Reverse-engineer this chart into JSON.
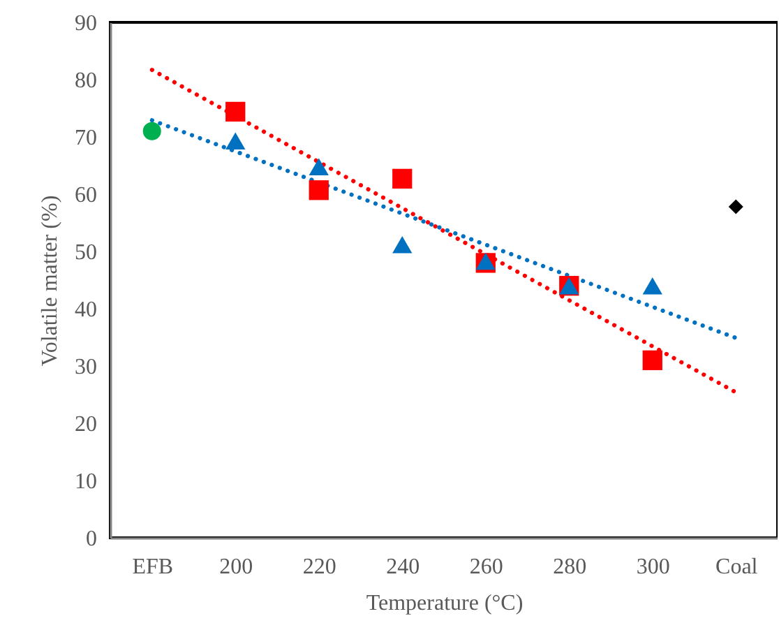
{
  "chart_data": {
    "type": "scatter",
    "xlabel": "Temperature (°C)",
    "ylabel": "Volatile matter (%)",
    "categories": [
      "EFB",
      "200",
      "220",
      "240",
      "260",
      "280",
      "300",
      "Coal"
    ],
    "ylim": [
      0,
      90
    ],
    "yticks": [
      0,
      10,
      20,
      30,
      40,
      50,
      60,
      70,
      80,
      90
    ],
    "series": [
      {
        "type": "line",
        "color": "#ff0000",
        "line_style": "dotted",
        "marker": "none",
        "x": [
          "EFB",
          "Coal"
        ],
        "values": [
          81.7,
          25.4
        ]
      },
      {
        "type": "line",
        "color": "#0070c0",
        "line_style": "dotted",
        "marker": "none",
        "x": [
          "EFB",
          "Coal"
        ],
        "values": [
          72.9,
          34.9
        ]
      },
      {
        "type": "scatter",
        "color": "#00b050",
        "marker": "circle",
        "x": [
          "EFB"
        ],
        "values": [
          71
        ]
      },
      {
        "type": "scatter",
        "color": "#ff0000",
        "marker": "square",
        "x": [
          "200",
          "220",
          "240",
          "260",
          "280",
          "300"
        ],
        "values": [
          74.4,
          60.7,
          62.7,
          48,
          44,
          31
        ]
      },
      {
        "type": "scatter",
        "color": "#0070c0",
        "marker": "triangle",
        "x": [
          "200",
          "220",
          "240",
          "260",
          "280",
          "300"
        ],
        "values": [
          69.3,
          64.8,
          51.2,
          48.3,
          44,
          44
        ]
      },
      {
        "type": "scatter",
        "color": "#000000",
        "marker": "diamond",
        "x": [
          "Coal"
        ],
        "values": [
          57.8
        ]
      }
    ]
  }
}
